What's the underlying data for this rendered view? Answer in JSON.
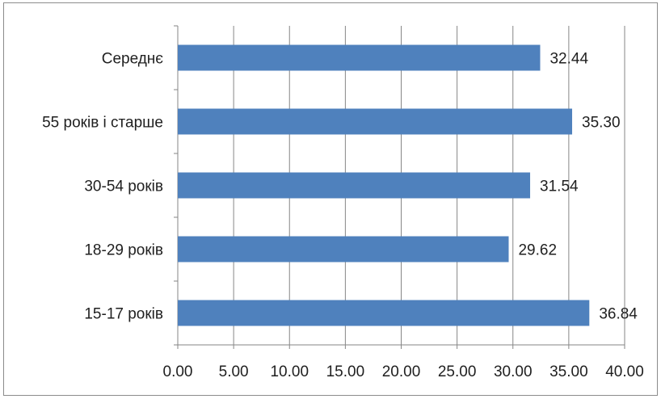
{
  "chart_data": {
    "type": "bar",
    "orientation": "horizontal",
    "categories": [
      "Середнє",
      "55  років і старше",
      "30-54  років",
      "18-29  років",
      "15-17 років"
    ],
    "values": [
      32.44,
      35.3,
      31.54,
      29.62,
      36.84
    ],
    "value_labels": [
      "32.44",
      "35.30",
      "31.54",
      "29.62",
      "36.84"
    ],
    "xlim": [
      0,
      40
    ],
    "x_ticks": [
      0,
      5,
      10,
      15,
      20,
      25,
      30,
      35,
      40
    ],
    "x_tick_labels": [
      "0.00",
      "5.00",
      "10.00",
      "15.00",
      "20.00",
      "25.00",
      "30.00",
      "35.00",
      "40.00"
    ],
    "grid": "vertical",
    "legend": "none",
    "bar_color": "#4f81bd",
    "grid_color": "#868686"
  }
}
